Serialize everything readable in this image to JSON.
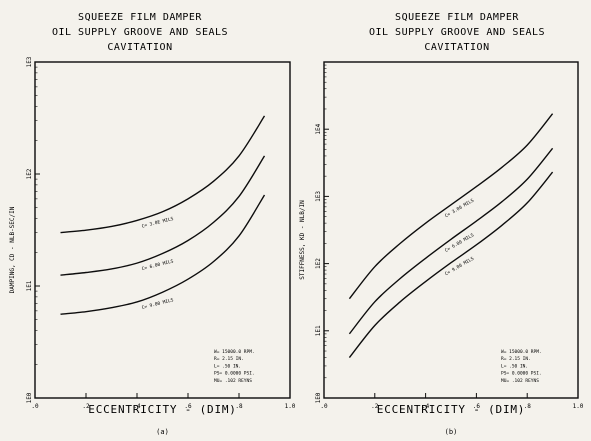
{
  "chart_data": [
    {
      "type": "line",
      "panel_label": "(a)",
      "title_lines": [
        "SQUEEZE FILM DAMPER",
        "OIL  SUPPLY GROOVE  AND SEALS",
        "CAVITATION"
      ],
      "xlabel": "ECCENTRICITY - (DIM)",
      "ylabel": "DAMPING, CD - NLB-SEC/IN",
      "xlim": [
        0,
        1.0
      ],
      "ylim": [
        1,
        1000
      ],
      "yscale": "log",
      "x_ticks": [
        ".0",
        ".2",
        ".4",
        ".6",
        ".8",
        "1.0"
      ],
      "y_ticks": [
        "1E0",
        "1E1",
        "1E2",
        "1E3"
      ],
      "series": [
        {
          "name": "C= 3.0E MILS",
          "x": [
            0.1,
            0.2,
            0.3,
            0.4,
            0.5,
            0.6,
            0.7,
            0.8,
            0.9
          ],
          "y": [
            30,
            31.5,
            34,
            38.5,
            46,
            60,
            86,
            145,
            330
          ]
        },
        {
          "name": "C= 6.00 MILS",
          "x": [
            0.1,
            0.2,
            0.3,
            0.4,
            0.5,
            0.6,
            0.7,
            0.8,
            0.9
          ],
          "y": [
            12.5,
            13.2,
            14.2,
            16,
            19.5,
            25.5,
            37,
            63,
            145
          ]
        },
        {
          "name": "C= 9.00 MILS",
          "x": [
            0.1,
            0.2,
            0.3,
            0.4,
            0.5,
            0.6,
            0.7,
            0.8,
            0.9
          ],
          "y": [
            5.6,
            5.9,
            6.4,
            7.2,
            8.8,
            11.5,
            16.5,
            28,
            65
          ]
        }
      ],
      "legend": [
        "W=  15000.0 RPM.",
        "R=   2.15 IN.",
        "L=    .50 IN.",
        "PS= 0.0000 PSI.",
        "MU=   .102  REYNS"
      ]
    },
    {
      "type": "line",
      "panel_label": "(b)",
      "title_lines": [
        "SQUEEZE FILM DAMPER",
        "OIL  SUPPLY GROOVE  AND SEALS",
        "CAVITATION"
      ],
      "xlabel": "ECCENTRICITY - (DIM)",
      "ylabel": "STIFFNESS, KD - NLB/IN",
      "xlim": [
        0,
        1.0
      ],
      "ylim": [
        1,
        100000
      ],
      "yscale": "log",
      "x_ticks": [
        ".0",
        ".2",
        ".4",
        ".6",
        ".8",
        "1.0"
      ],
      "y_ticks": [
        "1E0",
        "1E1",
        "1E2",
        "1E3",
        "1E4"
      ],
      "series": [
        {
          "name": "C= 3.00 MILS",
          "x": [
            0.1,
            0.2,
            0.3,
            0.4,
            0.5,
            0.6,
            0.7,
            0.8,
            0.9
          ],
          "y": [
            30,
            90,
            200,
            400,
            750,
            1400,
            2700,
            5800,
            17000
          ]
        },
        {
          "name": "C= 6.00 MILS",
          "x": [
            0.1,
            0.2,
            0.3,
            0.4,
            0.5,
            0.6,
            0.7,
            0.8,
            0.9
          ],
          "y": [
            9,
            27,
            60,
            120,
            230,
            430,
            830,
            1800,
            5200
          ]
        },
        {
          "name": "C= 9.00 MILS",
          "x": [
            0.1,
            0.2,
            0.3,
            0.4,
            0.5,
            0.6,
            0.7,
            0.8,
            0.9
          ],
          "y": [
            4,
            12,
            27,
            54,
            103,
            190,
            370,
            800,
            2300
          ]
        }
      ],
      "legend": [
        "W=  15000.0 RPM.",
        "R=   2.15 IN.",
        "L=    .50 IN.",
        "PS= 0.0000 PSI.",
        "MU=   .102  REYNS"
      ]
    }
  ]
}
